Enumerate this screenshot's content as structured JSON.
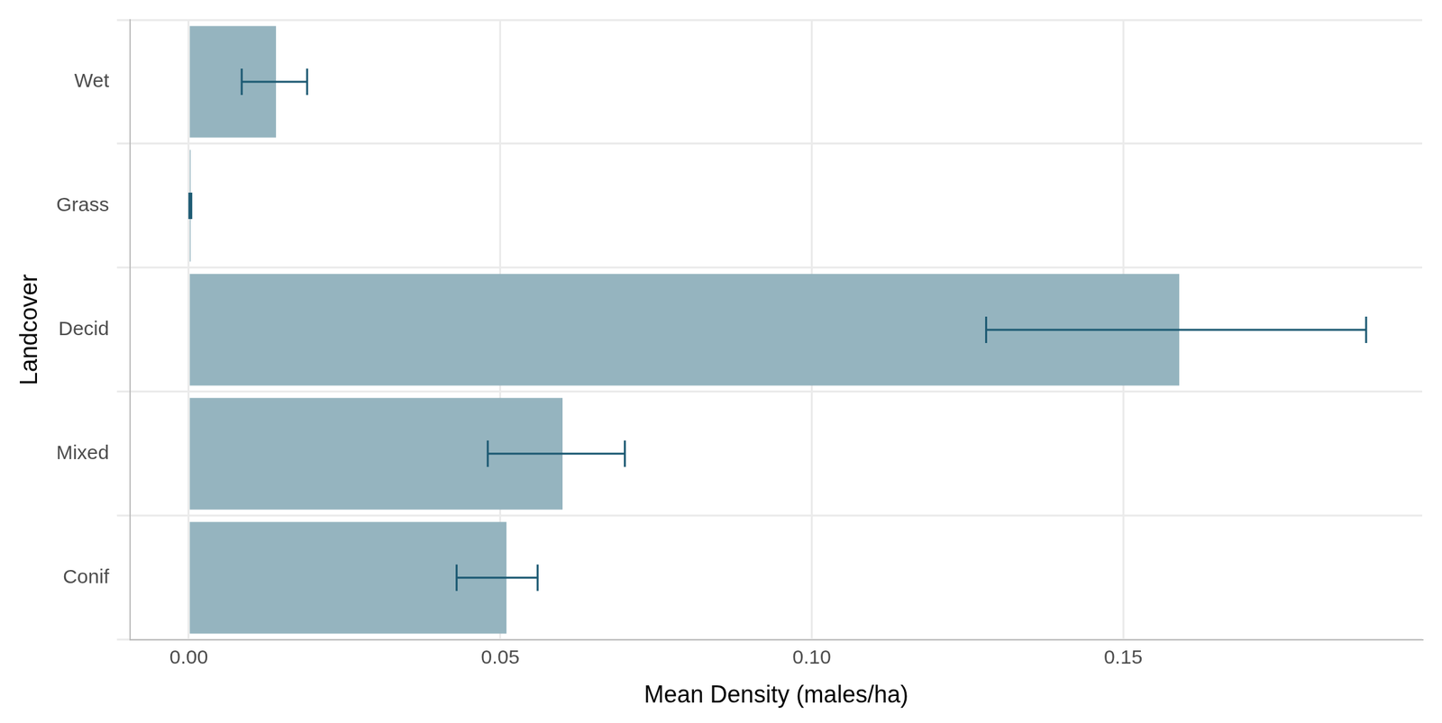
{
  "chart_data": {
    "type": "bar",
    "orientation": "horizontal",
    "x_label": "Mean Density (males/ha)",
    "y_label": "Landcover",
    "categories": [
      "Wet",
      "Grass",
      "Decid",
      "Mixed",
      "Conif"
    ],
    "values": [
      0.014,
      0.0003,
      0.159,
      0.06,
      0.051
    ],
    "error_low": [
      0.0085,
      0.0001,
      0.128,
      0.048,
      0.043
    ],
    "error_high": [
      0.019,
      0.0004,
      0.189,
      0.07,
      0.056
    ],
    "color": "#95b4bf",
    "xlim": [
      -0.0094,
      0.198
    ],
    "xticks": [
      {
        "value": 0,
        "label": "0.00"
      },
      {
        "value": 0.05,
        "label": "0.05"
      },
      {
        "value": 0.1,
        "label": "0.10"
      },
      {
        "value": 0.15,
        "label": "0.15"
      }
    ],
    "grid": true
  }
}
